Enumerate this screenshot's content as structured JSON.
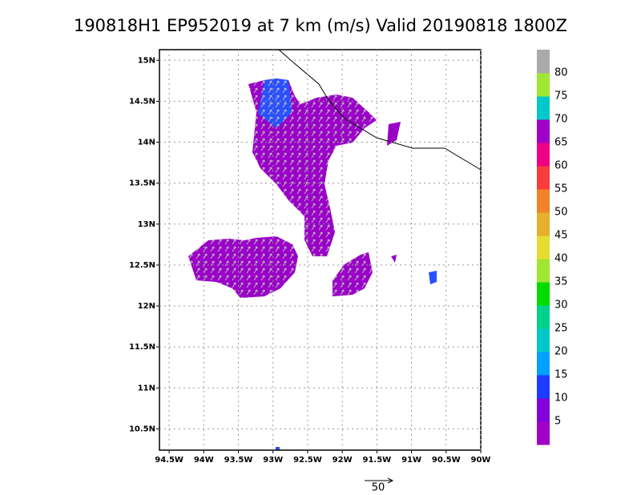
{
  "title": "190818H1  EP952019 at 7 km (m/s) Valid 20190818  1800Z",
  "map": {
    "lonlim": [
      -94.64,
      -90
    ],
    "latlim": [
      10.24,
      15.13
    ],
    "lonticks": [
      {
        "value": -94.5,
        "label": "94.5W"
      },
      {
        "value": -94,
        "label": "94W"
      },
      {
        "value": -93.5,
        "label": "93.5W"
      },
      {
        "value": -93,
        "label": "93W"
      },
      {
        "value": -92.5,
        "label": "92.5W"
      },
      {
        "value": -92,
        "label": "92W"
      },
      {
        "value": -91.5,
        "label": "91.5W"
      },
      {
        "value": -91,
        "label": "91W"
      },
      {
        "value": -90.5,
        "label": "90.5W"
      },
      {
        "value": -90,
        "label": "90W"
      }
    ],
    "latticks": [
      {
        "value": 10.5,
        "label": "10.5N"
      },
      {
        "value": 11,
        "label": "11N"
      },
      {
        "value": 11.5,
        "label": "11.5N"
      },
      {
        "value": 12,
        "label": "12N"
      },
      {
        "value": 12.5,
        "label": "12.5N"
      },
      {
        "value": 13,
        "label": "13N"
      },
      {
        "value": 13.5,
        "label": "13.5N"
      },
      {
        "value": 14,
        "label": "14N"
      },
      {
        "value": 14.5,
        "label": "14.5N"
      },
      {
        "value": 15,
        "label": "15N"
      }
    ],
    "grid": true
  },
  "colorbar": {
    "colors": [
      "#a000c8",
      "#8200dc",
      "#1e3cff",
      "#00a0ff",
      "#00c8c8",
      "#00d28c",
      "#00dc00",
      "#a0e632",
      "#e6dc32",
      "#e6af2d",
      "#f08228",
      "#fa3c3c",
      "#f00082",
      "#a000c8",
      "#00c8c8",
      "#a0e632",
      "#aaaaaa"
    ],
    "levels": [
      5,
      10,
      15,
      20,
      25,
      30,
      35,
      40,
      45,
      50,
      55,
      60,
      65,
      70,
      75,
      80
    ]
  },
  "reference_vector": "50"
}
